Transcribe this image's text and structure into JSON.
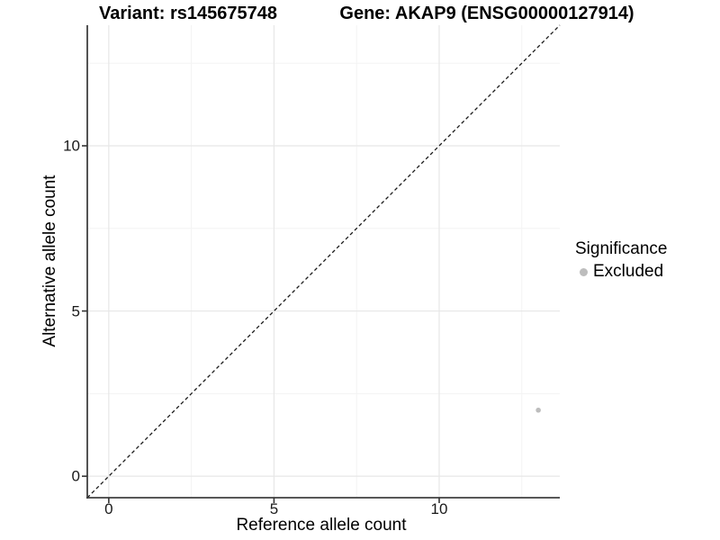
{
  "header": {
    "variant_title": "Variant: rs145675748",
    "gene_title": "Gene: AKAP9 (ENSG00000127914)"
  },
  "axes": {
    "x": {
      "label": "Reference allele count",
      "tick_labels": [
        "0",
        "5",
        "10"
      ]
    },
    "y": {
      "label": "Alternative allele count",
      "tick_labels": [
        "0",
        "5",
        "10"
      ]
    }
  },
  "legend": {
    "title": "Significance",
    "items": [
      {
        "label": "Excluded",
        "color": "#bdbdbd"
      }
    ]
  },
  "colors": {
    "background": "#ffffff",
    "axis_line": "#404040",
    "tick_mark": "#333333",
    "grid_major": "#e7e7e7",
    "grid_minor": "#f3f3f3",
    "reference_line": "#1a1a1a",
    "point_excluded": "#bdbdbd"
  },
  "chart_data": {
    "type": "scatter",
    "title": "Variant: rs145675748   Gene: AKAP9 (ENSG00000127914)",
    "xlabel": "Reference allele count",
    "ylabel": "Alternative allele count",
    "xlim": [
      -0.65,
      13.65
    ],
    "ylim": [
      -0.65,
      13.65
    ],
    "x_major_ticks": [
      0,
      5,
      10
    ],
    "y_major_ticks": [
      0,
      5,
      10
    ],
    "x_minor_ticks": [
      2.5,
      7.5,
      12.5
    ],
    "y_minor_ticks": [
      2.5,
      7.5,
      12.5
    ],
    "grid": "on",
    "legend_position": "right",
    "series": [
      {
        "name": "Excluded",
        "color": "#bdbdbd",
        "marker": "circle",
        "points": [
          {
            "x": 13,
            "y": 2
          }
        ]
      }
    ],
    "reference_line": {
      "kind": "identity",
      "style": "dashed",
      "from": [
        -0.65,
        -0.65
      ],
      "to": [
        13.65,
        13.65
      ]
    }
  }
}
